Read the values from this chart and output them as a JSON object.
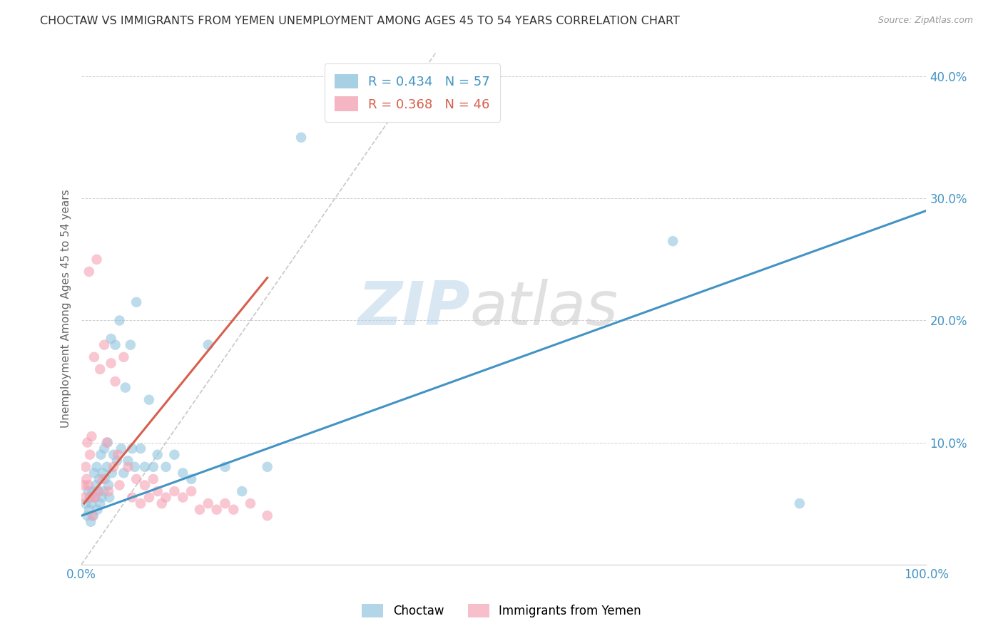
{
  "title": "CHOCTAW VS IMMIGRANTS FROM YEMEN UNEMPLOYMENT AMONG AGES 45 TO 54 YEARS CORRELATION CHART",
  "source": "Source: ZipAtlas.com",
  "ylabel": "Unemployment Among Ages 45 to 54 years",
  "xlim": [
    0,
    1.0
  ],
  "ylim": [
    0,
    0.42
  ],
  "legend_label1": "Choctaw",
  "legend_label2": "Immigrants from Yemen",
  "R1": 0.434,
  "N1": 57,
  "R2": 0.368,
  "N2": 46,
  "color_blue": "#92c5de",
  "color_pink": "#f4a3b5",
  "trendline_blue": "#4393c3",
  "trendline_pink": "#d6604d",
  "diagonal_color": "#c8c8c8",
  "watermark_zip": "ZIP",
  "watermark_atlas": "atlas",
  "blue_scatter_x": [
    0.005,
    0.007,
    0.008,
    0.009,
    0.01,
    0.011,
    0.012,
    0.013,
    0.014,
    0.015,
    0.016,
    0.017,
    0.018,
    0.019,
    0.02,
    0.021,
    0.022,
    0.023,
    0.024,
    0.025,
    0.026,
    0.027,
    0.028,
    0.03,
    0.031,
    0.032,
    0.033,
    0.035,
    0.036,
    0.038,
    0.04,
    0.042,
    0.045,
    0.047,
    0.05,
    0.052,
    0.055,
    0.058,
    0.06,
    0.063,
    0.065,
    0.07,
    0.075,
    0.08,
    0.085,
    0.09,
    0.1,
    0.11,
    0.12,
    0.13,
    0.15,
    0.17,
    0.19,
    0.22,
    0.26,
    0.7,
    0.85
  ],
  "blue_scatter_y": [
    0.05,
    0.04,
    0.06,
    0.045,
    0.055,
    0.035,
    0.05,
    0.06,
    0.04,
    0.075,
    0.055,
    0.065,
    0.08,
    0.045,
    0.06,
    0.07,
    0.05,
    0.09,
    0.055,
    0.075,
    0.06,
    0.095,
    0.07,
    0.08,
    0.1,
    0.065,
    0.055,
    0.185,
    0.075,
    0.09,
    0.18,
    0.085,
    0.2,
    0.095,
    0.075,
    0.145,
    0.085,
    0.18,
    0.095,
    0.08,
    0.215,
    0.095,
    0.08,
    0.135,
    0.08,
    0.09,
    0.08,
    0.09,
    0.075,
    0.07,
    0.18,
    0.08,
    0.06,
    0.08,
    0.35,
    0.265,
    0.05
  ],
  "pink_scatter_x": [
    0.003,
    0.004,
    0.005,
    0.006,
    0.007,
    0.008,
    0.009,
    0.01,
    0.011,
    0.012,
    0.013,
    0.015,
    0.016,
    0.018,
    0.02,
    0.022,
    0.025,
    0.027,
    0.03,
    0.032,
    0.035,
    0.038,
    0.04,
    0.043,
    0.045,
    0.05,
    0.055,
    0.06,
    0.065,
    0.07,
    0.075,
    0.08,
    0.085,
    0.09,
    0.095,
    0.1,
    0.11,
    0.12,
    0.13,
    0.14,
    0.15,
    0.16,
    0.17,
    0.18,
    0.2,
    0.22
  ],
  "pink_scatter_y": [
    0.065,
    0.055,
    0.08,
    0.07,
    0.1,
    0.065,
    0.24,
    0.09,
    0.055,
    0.105,
    0.04,
    0.17,
    0.055,
    0.25,
    0.06,
    0.16,
    0.07,
    0.18,
    0.1,
    0.06,
    0.165,
    0.08,
    0.15,
    0.09,
    0.065,
    0.17,
    0.08,
    0.055,
    0.07,
    0.05,
    0.065,
    0.055,
    0.07,
    0.06,
    0.05,
    0.055,
    0.06,
    0.055,
    0.06,
    0.045,
    0.05,
    0.045,
    0.05,
    0.045,
    0.05,
    0.04
  ],
  "blue_trend_x": [
    0.0,
    1.0
  ],
  "blue_trend_y_start": 0.04,
  "blue_trend_y_end": 0.29,
  "pink_trend_x_start": 0.003,
  "pink_trend_x_end": 0.22,
  "pink_trend_y_start": 0.05,
  "pink_trend_y_end": 0.235
}
